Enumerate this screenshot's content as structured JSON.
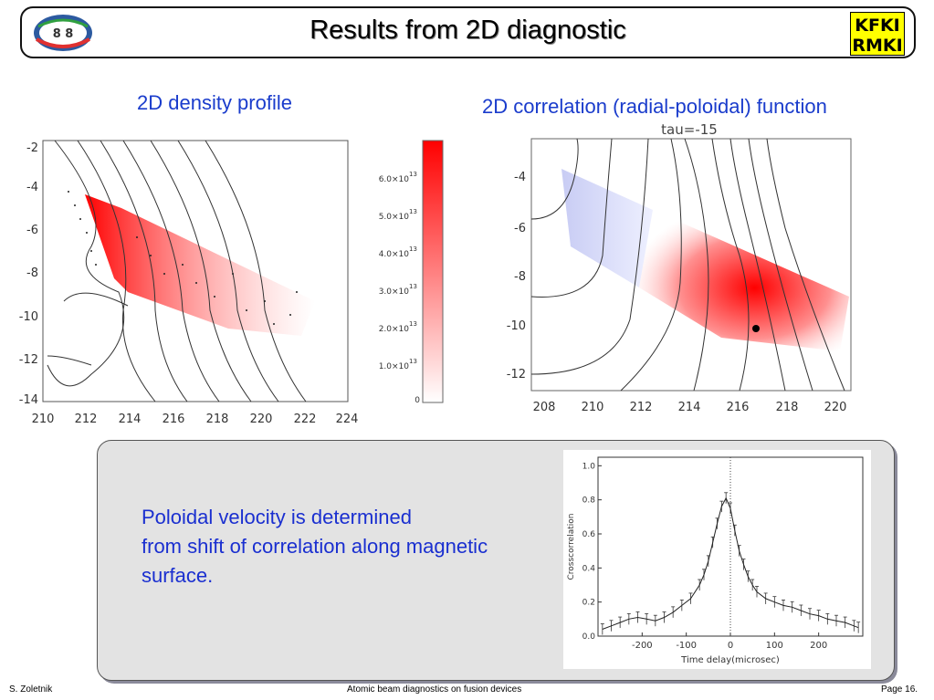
{
  "header": {
    "title": "Results from 2D diagnostic",
    "logo_left_text": "8 8",
    "logo_right_line1": "KFKI",
    "logo_right_line2": "RMKI"
  },
  "left_plot": {
    "label": "2D density profile",
    "x_ticks": [
      "210",
      "212",
      "214",
      "216",
      "218",
      "220",
      "222",
      "224"
    ],
    "y_ticks": [
      "-2",
      "-4",
      "-6",
      "-8",
      "-10",
      "-12",
      "-14"
    ],
    "colorbar_ticks": [
      "6.0×10",
      "5.0×10",
      "4.0×10",
      "3.0×10",
      "2.0×10",
      "1.0×10",
      "0"
    ],
    "colorbar_exp": "13"
  },
  "right_plot": {
    "label": "2D correlation (radial-poloidal) function",
    "subtitle": "tau=-15",
    "x_ticks": [
      "208",
      "210",
      "212",
      "214",
      "216",
      "218",
      "220"
    ],
    "y_ticks": [
      "-4",
      "-6",
      "-8",
      "-10",
      "-12"
    ]
  },
  "panel": {
    "line1": "Poloidal velocity is determined",
    "line2": "from shift of correlation along magnetic",
    "line3": "surface."
  },
  "chart_data": {
    "type": "line",
    "title": "",
    "xlabel": "Time delay(microsec)",
    "ylabel": "Crosscorrelation",
    "xlim": [
      -300,
      300
    ],
    "ylim": [
      0,
      1.05
    ],
    "x_ticks": [
      "-200",
      "-100",
      "0",
      "100",
      "200"
    ],
    "y_ticks": [
      "0.0",
      "0.2",
      "0.4",
      "0.6",
      "0.8",
      "1.0"
    ],
    "series": [
      {
        "x": [
          -290,
          -270,
          -250,
          -230,
          -210,
          -190,
          -170,
          -150,
          -130,
          -110,
          -90,
          -70,
          -60,
          -50,
          -40,
          -30,
          -20,
          -10,
          0,
          10,
          20,
          30,
          40,
          50,
          60,
          80,
          100,
          120,
          140,
          160,
          180,
          200,
          220,
          240,
          260,
          280,
          290
        ],
        "values": [
          0.04,
          0.06,
          0.08,
          0.1,
          0.11,
          0.1,
          0.09,
          0.11,
          0.14,
          0.18,
          0.22,
          0.3,
          0.36,
          0.44,
          0.55,
          0.66,
          0.76,
          0.81,
          0.75,
          0.62,
          0.5,
          0.42,
          0.35,
          0.3,
          0.26,
          0.22,
          0.2,
          0.18,
          0.17,
          0.15,
          0.13,
          0.12,
          0.1,
          0.09,
          0.08,
          0.06,
          0.05
        ]
      }
    ]
  },
  "footer": {
    "author": "S. Zoletnik",
    "center": "Atomic beam diagnostics on fusion devices",
    "page": "Page  16."
  }
}
